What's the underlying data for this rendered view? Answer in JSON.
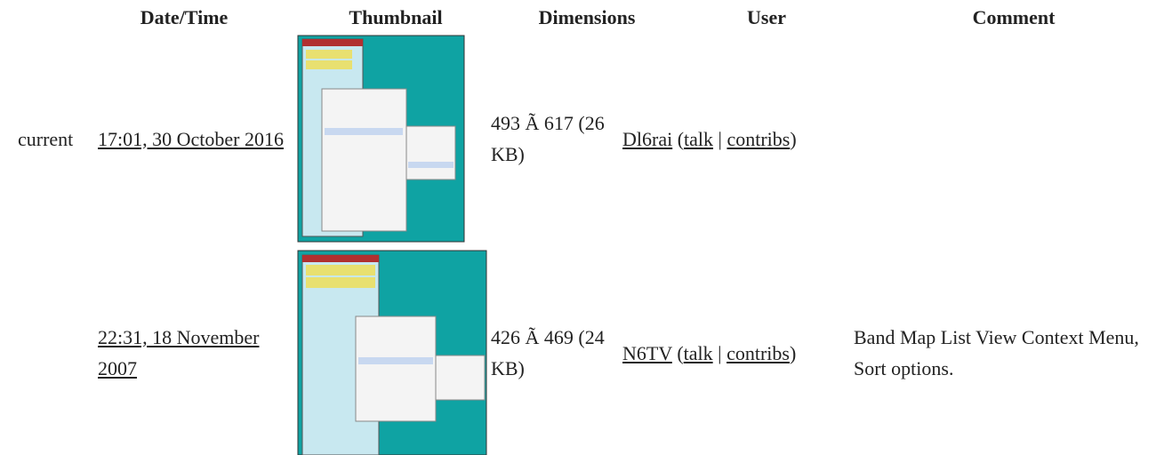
{
  "table": {
    "headers": [
      "Date/Time",
      "Thumbnail",
      "Dimensions",
      "User",
      "Comment"
    ],
    "rows": [
      {
        "status": "current",
        "datetime": "17:01, 30 October 2016",
        "dimensions": "493 Ã 617 (26 KB)",
        "user": [
          {
            "text": "Dl6rai",
            "link": true
          },
          {
            "text": " ("
          },
          {
            "text": "talk",
            "link": true
          },
          {
            "text": " | "
          },
          {
            "text": "contribs",
            "link": true
          },
          {
            "text": ")"
          }
        ]
      },
      {
        "datetime": "22:31, 18 November 2007",
        "dimensions": "426 Ã 469 (24 KB)",
        "user": [
          {
            "text": "N6TV",
            "link": true
          },
          {
            "text": " ("
          },
          {
            "text": "talk",
            "link": true
          },
          {
            "text": " | "
          },
          {
            "text": "contribs",
            "link": true
          },
          {
            "text": ")"
          }
        ],
        "comment": "Band Map List View Context Menu, Sort options."
      }
    ]
  }
}
